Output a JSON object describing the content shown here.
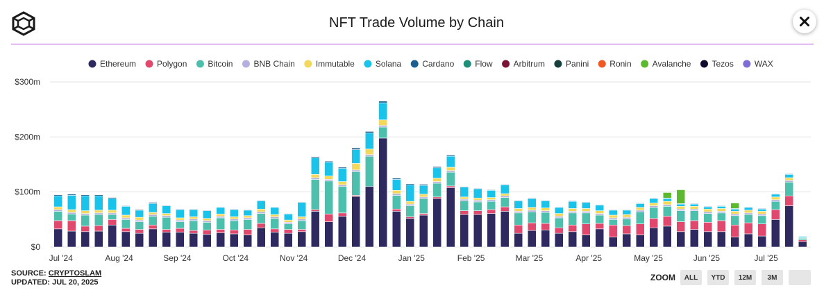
{
  "header": {
    "title": "NFT Trade Volume by Chain",
    "close_label": "✕"
  },
  "footer": {
    "source_prefix": "SOURCE:",
    "source_name": "CRYPTOSLAM",
    "updated": "UPDATED: JUL 20, 2025"
  },
  "zoom": {
    "label": "ZOOM",
    "buttons": [
      "ALL",
      "YTD",
      "12M",
      "3M",
      ""
    ]
  },
  "chart_data": {
    "type": "bar",
    "stacked": true,
    "title": "NFT Trade Volume by Chain",
    "ylim": [
      0,
      300
    ],
    "yticks": [
      "$0",
      "$100m",
      "$200m",
      "$300m"
    ],
    "ytick_values": [
      0,
      100,
      200,
      300
    ],
    "xticks": [
      "Jul '24",
      "Aug '24",
      "Sep '24",
      "Oct '24",
      "Nov '24",
      "Dec '24",
      "Jan '25",
      "Feb '25",
      "Mar '25",
      "Apr '25",
      "May '25",
      "Jun '25",
      "Jul '25"
    ],
    "xtick_positions": [
      0.5,
      4.8,
      9.1,
      13.4,
      17.7,
      22.0,
      26.4,
      30.8,
      35.1,
      39.5,
      43.9,
      48.2,
      52.6
    ],
    "legend_position": "top",
    "series": [
      {
        "name": "Ethereum",
        "color": "#2e2a5f",
        "values": [
          33,
          29,
          28,
          29,
          40,
          28,
          25,
          33,
          27,
          27,
          25,
          23,
          26,
          24,
          22,
          35,
          27,
          25,
          28,
          65,
          46,
          56,
          92,
          110,
          198,
          65,
          52,
          58,
          88,
          108,
          59,
          59,
          61,
          65,
          25,
          30,
          31,
          25,
          28,
          22,
          33,
          18,
          24,
          22,
          35,
          38,
          28,
          32,
          28,
          28,
          18,
          24,
          20,
          50,
          75,
          10
        ]
      },
      {
        "name": "Polygon",
        "color": "#e0496d",
        "values": [
          15,
          19,
          10,
          10,
          10,
          6,
          7,
          7,
          5,
          7,
          5,
          8,
          6,
          7,
          10,
          8,
          6,
          7,
          4,
          3,
          14,
          6,
          2,
          0,
          0,
          4,
          3,
          3,
          3,
          3,
          7,
          7,
          7,
          8,
          15,
          14,
          12,
          10,
          12,
          20,
          10,
          22,
          15,
          20,
          17,
          18,
          18,
          16,
          17,
          20,
          22,
          20,
          22,
          18,
          18,
          3
        ]
      },
      {
        "name": "Bitcoin",
        "color": "#4cbfad",
        "values": [
          17,
          12,
          20,
          20,
          9,
          16,
          14,
          16,
          22,
          12,
          18,
          14,
          21,
          17,
          18,
          18,
          19,
          10,
          16,
          55,
          60,
          48,
          43,
          55,
          20,
          25,
          20,
          27,
          25,
          25,
          18,
          16,
          15,
          17,
          22,
          20,
          20,
          18,
          22,
          20,
          15,
          10,
          12,
          22,
          20,
          18,
          20,
          18,
          16,
          14,
          17,
          15,
          15,
          15,
          25,
          3
        ]
      },
      {
        "name": "BNB Chain",
        "color": "#b4b0de",
        "values": [
          3,
          3,
          3,
          3,
          3,
          3,
          3,
          3,
          3,
          3,
          3,
          3,
          3,
          3,
          3,
          3,
          3,
          3,
          3,
          3,
          3,
          3,
          3,
          3,
          3,
          3,
          3,
          3,
          3,
          3,
          3,
          3,
          3,
          3,
          3,
          3,
          3,
          3,
          3,
          3,
          3,
          3,
          3,
          3,
          3,
          3,
          3,
          3,
          3,
          3,
          3,
          3,
          3,
          3,
          3,
          1
        ]
      },
      {
        "name": "Immutable",
        "color": "#f2d95c",
        "values": [
          5,
          5,
          5,
          5,
          5,
          5,
          5,
          4,
          4,
          4,
          4,
          4,
          4,
          4,
          4,
          5,
          4,
          4,
          4,
          6,
          6,
          6,
          12,
          10,
          10,
          6,
          5,
          5,
          6,
          6,
          4,
          4,
          4,
          4,
          5,
          5,
          5,
          5,
          5,
          5,
          5,
          5,
          5,
          5,
          5,
          6,
          5,
          5,
          5,
          5,
          5,
          5,
          5,
          5,
          5,
          0
        ]
      },
      {
        "name": "Solana",
        "color": "#19c3ea",
        "values": [
          20,
          26,
          27,
          26,
          21,
          16,
          13,
          16,
          14,
          15,
          13,
          14,
          12,
          13,
          10,
          15,
          13,
          11,
          26,
          30,
          25,
          24,
          25,
          29,
          31,
          20,
          30,
          16,
          19,
          20,
          18,
          17,
          13,
          16,
          14,
          16,
          13,
          11,
          13,
          11,
          10,
          9,
          8,
          7,
          8,
          5,
          4,
          4,
          4,
          4,
          4,
          5,
          4,
          5,
          6,
          2
        ]
      },
      {
        "name": "Cardano",
        "color": "#1b5e8f",
        "values": [
          2,
          2,
          2,
          2,
          2,
          1,
          1,
          2,
          1,
          1,
          1,
          1,
          1,
          1,
          1,
          1,
          1,
          1,
          1,
          2,
          2,
          2,
          3,
          3,
          3,
          2,
          2,
          2,
          2,
          2,
          1,
          1,
          1,
          1,
          1,
          1,
          1,
          1,
          1,
          1,
          1,
          1,
          1,
          1,
          1,
          1,
          1,
          1,
          1,
          1,
          1,
          1,
          1,
          1,
          1,
          0
        ]
      },
      {
        "name": "Flow",
        "color": "#1d8f78",
        "values": [
          0,
          0,
          0,
          0,
          0,
          0,
          0,
          0,
          0,
          0,
          0,
          0,
          0,
          0,
          0,
          0,
          0,
          0,
          0,
          0,
          0,
          0,
          0,
          0,
          0,
          0,
          0,
          0,
          0,
          0,
          0,
          0,
          0,
          0,
          0,
          0,
          0,
          0,
          0,
          0,
          0,
          0,
          0,
          0,
          0,
          0,
          0,
          0,
          0,
          0,
          0,
          0,
          0,
          0,
          0,
          0
        ]
      },
      {
        "name": "Arbitrum",
        "color": "#7a1236",
        "values": [
          0,
          0,
          0,
          0,
          0,
          0,
          0,
          0,
          0,
          0,
          0,
          0,
          0,
          0,
          0,
          0,
          0,
          0,
          0,
          0,
          0,
          0,
          0,
          0,
          0,
          0,
          0,
          0,
          0,
          0,
          0,
          0,
          0,
          0,
          0,
          0,
          0,
          0,
          0,
          0,
          0,
          0,
          0,
          0,
          0,
          0,
          0,
          0,
          0,
          0,
          0,
          0,
          0,
          0,
          0,
          0
        ]
      },
      {
        "name": "Panini",
        "color": "#153f3a",
        "values": [
          0,
          0,
          0,
          0,
          0,
          0,
          0,
          0,
          0,
          0,
          0,
          0,
          0,
          0,
          0,
          0,
          0,
          0,
          0,
          0,
          0,
          0,
          0,
          0,
          0,
          0,
          0,
          0,
          0,
          0,
          0,
          0,
          0,
          0,
          0,
          0,
          0,
          0,
          0,
          0,
          0,
          0,
          0,
          0,
          0,
          0,
          0,
          0,
          0,
          0,
          0,
          0,
          0,
          0,
          0,
          0
        ]
      },
      {
        "name": "Ronin",
        "color": "#f05a22",
        "values": [
          0,
          0,
          0,
          0,
          0,
          0,
          0,
          0,
          0,
          0,
          0,
          0,
          0,
          0,
          0,
          0,
          0,
          0,
          0,
          0,
          0,
          0,
          0,
          0,
          0,
          0,
          0,
          0,
          0,
          0,
          0,
          0,
          0,
          0,
          0,
          0,
          0,
          0,
          0,
          0,
          0,
          0,
          0,
          0,
          0,
          0,
          0,
          0,
          0,
          0,
          0,
          0,
          0,
          0,
          0,
          0
        ]
      },
      {
        "name": "Avalanche",
        "color": "#5cb82e",
        "values": [
          0,
          0,
          0,
          0,
          0,
          0,
          0,
          0,
          0,
          0,
          0,
          0,
          0,
          0,
          0,
          0,
          0,
          0,
          0,
          0,
          0,
          0,
          0,
          0,
          0,
          0,
          0,
          0,
          0,
          0,
          0,
          0,
          0,
          0,
          0,
          0,
          0,
          0,
          0,
          0,
          0,
          0,
          0,
          0,
          0,
          10,
          25,
          0,
          0,
          0,
          10,
          0,
          0,
          0,
          0,
          0
        ]
      },
      {
        "name": "Tezos",
        "color": "#0d0b2e",
        "values": [
          0,
          0,
          0,
          0,
          0,
          0,
          1,
          0,
          0,
          0,
          0,
          0,
          0,
          0,
          0,
          0,
          0,
          0,
          0,
          0,
          0,
          0,
          0,
          0,
          0,
          0,
          0,
          0,
          0,
          0,
          0,
          0,
          0,
          0,
          0,
          0,
          0,
          0,
          0,
          0,
          0,
          0,
          0,
          0,
          0,
          0,
          0,
          0,
          0,
          0,
          0,
          0,
          0,
          0,
          0,
          0
        ]
      },
      {
        "name": "WAX",
        "color": "#7b6fd6",
        "values": [
          0,
          0,
          0,
          0,
          0,
          0,
          0,
          0,
          0,
          0,
          0,
          0,
          0,
          0,
          0,
          0,
          0,
          0,
          0,
          0,
          0,
          0,
          0,
          0,
          0,
          0,
          0,
          0,
          0,
          0,
          0,
          0,
          0,
          0,
          0,
          0,
          0,
          0,
          0,
          0,
          0,
          0,
          0,
          0,
          0,
          0,
          0,
          0,
          0,
          0,
          0,
          0,
          0,
          0,
          0,
          0
        ]
      }
    ]
  }
}
